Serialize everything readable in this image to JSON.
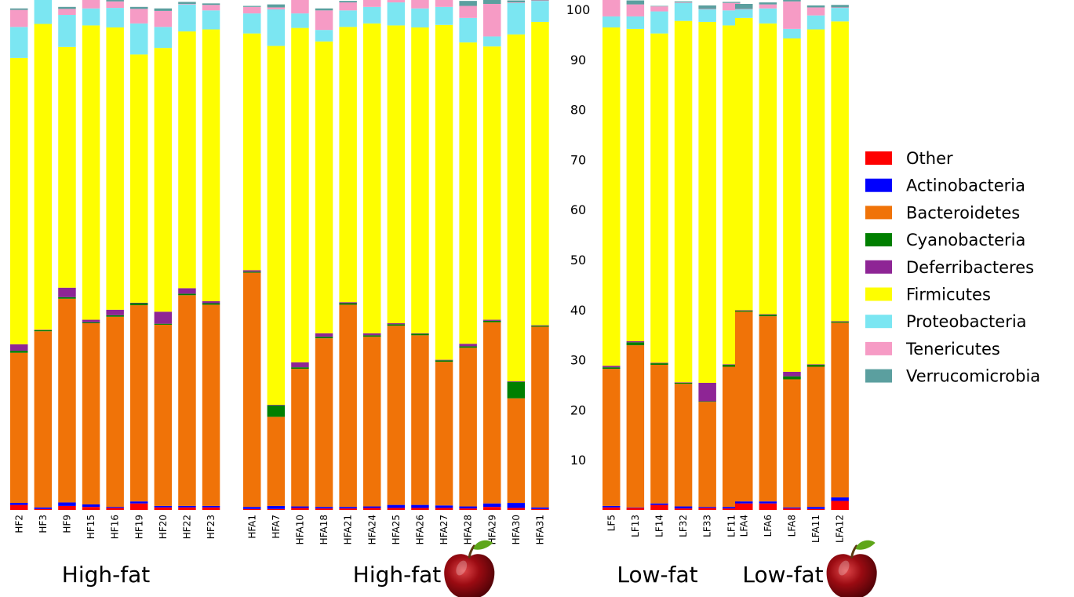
{
  "chart_data": {
    "type": "bar",
    "stacked": true,
    "y_ticks": [
      "10",
      "20",
      "30",
      "40",
      "50",
      "60",
      "70",
      "80",
      "90",
      "100"
    ],
    "ylim": [
      0,
      100
    ],
    "legend_position": "right",
    "series": [
      {
        "name": "Other",
        "color": "#fe0000"
      },
      {
        "name": "Actinobacteria",
        "color": "#0000fe"
      },
      {
        "name": "Bacteroidetes",
        "color": "#f07308"
      },
      {
        "name": "Cyanobacteria",
        "color": "#007f00"
      },
      {
        "name": "Deferribacteres",
        "color": "#8e2595"
      },
      {
        "name": "Firmicutes",
        "color": "#fefe00"
      },
      {
        "name": "Proteobacteria",
        "color": "#7be6f2"
      },
      {
        "name": "Tenericutes",
        "color": "#f69bc5"
      },
      {
        "name": "Verrucomicrobia",
        "color": "#5b9f9f"
      }
    ],
    "groups": [
      {
        "label": "High-fat",
        "apple": false,
        "samples": [
          {
            "name": "HF2",
            "values": [
              1.0,
              0.4,
              30.0,
              0.4,
              1.3,
              57.2,
              6.2,
              3.4,
              0.3
            ]
          },
          {
            "name": "HF3",
            "values": [
              0.2,
              0.3,
              35.2,
              0.2,
              0.1,
              61.1,
              4.9,
              0.1,
              0.2
            ]
          },
          {
            "name": "HF9",
            "values": [
              0.8,
              0.7,
              40.7,
              0.3,
              1.9,
              48.1,
              6.4,
              1.2,
              0.4
            ]
          },
          {
            "name": "HF15",
            "values": [
              0.6,
              0.5,
              36.2,
              0.2,
              0.5,
              58.8,
              3.4,
              1.9,
              0.2
            ]
          },
          {
            "name": "HF16",
            "values": [
              0.4,
              0.2,
              38.0,
              0.3,
              1.1,
              56.4,
              3.9,
              1.3,
              0.4
            ]
          },
          {
            "name": "HF19",
            "values": [
              1.3,
              0.4,
              39.2,
              0.4,
              0.1,
              49.6,
              6.2,
              2.9,
              0.4
            ]
          },
          {
            "name": "HF20",
            "values": [
              0.5,
              0.3,
              36.2,
              0.2,
              2.4,
              52.7,
              4.2,
              3.2,
              0.5
            ]
          },
          {
            "name": "HF22",
            "values": [
              0.5,
              0.3,
              42.1,
              0.3,
              1.1,
              51.3,
              5.4,
              0.1,
              0.4
            ]
          },
          {
            "name": "HF23",
            "values": [
              0.5,
              0.3,
              40.2,
              0.3,
              0.4,
              54.3,
              3.8,
              1.1,
              0.3
            ]
          }
        ]
      },
      {
        "label": "High-fat",
        "apple": true,
        "samples": [
          {
            "name": "HFA1",
            "values": [
              0.2,
              0.4,
              46.8,
              0.2,
              0.3,
              47.3,
              4.0,
              1.3,
              0.2
            ]
          },
          {
            "name": "HFA7",
            "values": [
              0.2,
              0.6,
              17.8,
              2.3,
              0.1,
              71.7,
              7.3,
              0.4,
              0.6
            ]
          },
          {
            "name": "HFA10",
            "values": [
              0.4,
              0.3,
              27.5,
              0.3,
              1.0,
              66.8,
              2.9,
              2.7,
              0.4
            ]
          },
          {
            "name": "HFA18",
            "values": [
              0.3,
              0.3,
              33.7,
              0.3,
              0.7,
              58.3,
              2.3,
              3.9,
              0.4
            ]
          },
          {
            "name": "HFA21",
            "values": [
              0.3,
              0.3,
              40.4,
              0.3,
              0.2,
              55.0,
              3.3,
              1.6,
              0.3
            ]
          },
          {
            "name": "HFA24",
            "values": [
              0.4,
              0.3,
              33.9,
              0.3,
              0.4,
              61.9,
              3.3,
              1.5,
              0.2
            ]
          },
          {
            "name": "HFA25",
            "values": [
              0.4,
              0.6,
              35.8,
              0.3,
              0.2,
              59.5,
              4.6,
              1.6,
              0.3
            ]
          },
          {
            "name": "HFA26",
            "values": [
              0.4,
              0.6,
              33.9,
              0.3,
              0.1,
              61.1,
              3.8,
              1.8,
              0.2
            ]
          },
          {
            "name": "HFA27",
            "values": [
              0.4,
              0.5,
              28.7,
              0.3,
              0.1,
              66.9,
              3.6,
              1.4,
              0.2
            ]
          },
          {
            "name": "HFA28",
            "values": [
              0.3,
              0.4,
              31.7,
              0.3,
              0.5,
              60.2,
              4.9,
              2.4,
              1.0
            ]
          },
          {
            "name": "HFA29",
            "values": [
              0.6,
              0.7,
              36.2,
              0.3,
              0.2,
              54.6,
              2.0,
              6.5,
              0.8
            ]
          },
          {
            "name": "HFA30",
            "values": [
              0.4,
              1.0,
              20.9,
              3.3,
              0.1,
              69.3,
              6.3,
              0.1,
              0.4
            ]
          },
          {
            "name": "HFA31",
            "values": [
              0.2,
              0.3,
              36.1,
              0.2,
              0.1,
              60.6,
              4.2,
              0.1,
              0.2
            ]
          }
        ]
      },
      {
        "label": "Low-fat",
        "apple": false,
        "samples": [
          {
            "name": "LF5",
            "values": [
              0.5,
              0.3,
              27.4,
              0.3,
              0.3,
              67.6,
              2.2,
              4.2,
              0.4
            ]
          },
          {
            "name": "LF13",
            "values": [
              0.4,
              0.1,
              32.4,
              0.6,
              0.2,
              62.4,
              2.5,
              2.4,
              0.8
            ]
          },
          {
            "name": "LF14",
            "values": [
              1.0,
              0.3,
              27.7,
              0.3,
              0.1,
              65.8,
              4.4,
              1.0,
              0.1
            ]
          },
          {
            "name": "LF32",
            "values": [
              0.3,
              0.4,
              24.5,
              0.2,
              0.1,
              72.2,
              3.6,
              0.1,
              0.2
            ]
          },
          {
            "name": "LF33",
            "values": [
              0.4,
              0.2,
              21.0,
              0.1,
              3.7,
              72.1,
              2.5,
              0.1,
              0.7
            ]
          },
          {
            "name": "LF11",
            "values": [
              0.3,
              0.3,
              28.0,
              0.4,
              0.1,
              67.7,
              3.0,
              1.5,
              0.2
            ]
          }
        ]
      },
      {
        "label": "Low-fat",
        "apple": true,
        "samples": [
          {
            "name": "LFA4",
            "values": [
              1.3,
              0.4,
              37.9,
              0.2,
              0.1,
              58.4,
              1.7,
              0.1,
              1.0
            ]
          },
          {
            "name": "LFA6",
            "values": [
              1.3,
              0.4,
              37.0,
              0.3,
              0.1,
              58.1,
              3.0,
              0.8,
              0.4
            ]
          },
          {
            "name": "LFA8",
            "values": [
              0.3,
              0.2,
              25.6,
              0.6,
              0.9,
              66.6,
              1.9,
              5.5,
              0.6
            ]
          },
          {
            "name": "LFA11",
            "values": [
              0.2,
              0.4,
              28.0,
              0.4,
              0.1,
              66.9,
              2.8,
              1.6,
              0.4
            ]
          },
          {
            "name": "LFA12",
            "values": [
              1.8,
              0.7,
              34.9,
              0.2,
              0.1,
              59.9,
              2.7,
              0.1,
              0.5
            ]
          }
        ]
      }
    ]
  }
}
